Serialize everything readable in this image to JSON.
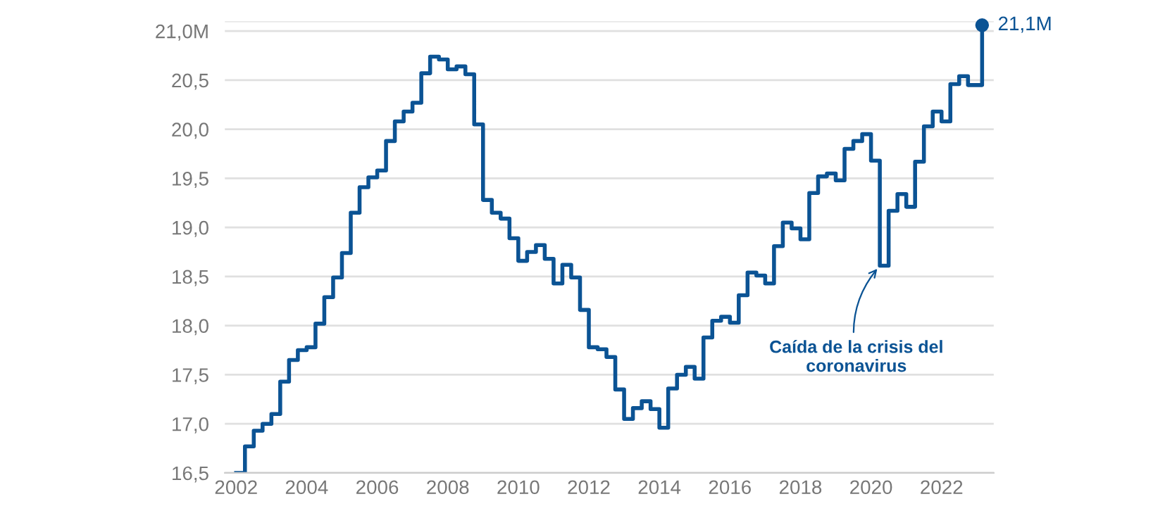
{
  "chart_data": {
    "type": "step",
    "x": [
      2002,
      2002.25,
      2002.5,
      2002.75,
      2003,
      2003.25,
      2003.5,
      2003.75,
      2004,
      2004.25,
      2004.5,
      2004.75,
      2005,
      2005.25,
      2005.5,
      2005.75,
      2006,
      2006.25,
      2006.5,
      2006.75,
      2007,
      2007.25,
      2007.5,
      2007.75,
      2008,
      2008.25,
      2008.5,
      2008.75,
      2009,
      2009.25,
      2009.5,
      2009.75,
      2010,
      2010.25,
      2010.5,
      2010.75,
      2011,
      2011.25,
      2011.5,
      2011.75,
      2012,
      2012.25,
      2012.5,
      2012.75,
      2013,
      2013.25,
      2013.5,
      2013.75,
      2014,
      2014.25,
      2014.5,
      2014.75,
      2015,
      2015.25,
      2015.5,
      2015.75,
      2016,
      2016.25,
      2016.5,
      2016.75,
      2017,
      2017.25,
      2017.5,
      2017.75,
      2018,
      2018.25,
      2018.5,
      2018.75,
      2019,
      2019.25,
      2019.5,
      2019.75,
      2020,
      2020.25,
      2020.5,
      2020.75,
      2021,
      2021.25,
      2021.5,
      2021.75,
      2022,
      2022.25,
      2022.5,
      2022.75,
      2023.15
    ],
    "series": [
      {
        "color": "#0b5394",
        "values": [
          16.5,
          16.77,
          16.93,
          17.0,
          17.1,
          17.43,
          17.65,
          17.75,
          17.78,
          18.02,
          18.29,
          18.49,
          18.74,
          19.15,
          19.41,
          19.51,
          19.58,
          19.88,
          20.08,
          20.18,
          20.27,
          20.57,
          20.74,
          20.71,
          20.61,
          20.64,
          20.56,
          20.05,
          19.28,
          19.15,
          19.09,
          18.89,
          18.66,
          18.75,
          18.82,
          18.68,
          18.43,
          18.62,
          18.49,
          18.16,
          17.78,
          17.76,
          17.68,
          17.35,
          17.05,
          17.16,
          17.23,
          17.15,
          16.96,
          17.36,
          17.5,
          17.58,
          17.46,
          17.88,
          18.05,
          18.09,
          18.03,
          18.31,
          18.54,
          18.51,
          18.43,
          18.81,
          19.05,
          18.99,
          18.88,
          19.35,
          19.52,
          19.55,
          19.48,
          19.8,
          19.88,
          19.95,
          19.68,
          18.61,
          19.17,
          19.34,
          19.21,
          19.67,
          20.03,
          20.18,
          20.08,
          20.46,
          20.54,
          20.45,
          21.06
        ],
        "value_labels": [
          null,
          null,
          null,
          null,
          null,
          null,
          null,
          null,
          null,
          null,
          null,
          null,
          null,
          null,
          null,
          null,
          null,
          null,
          null,
          null,
          null,
          null,
          null,
          null,
          null,
          null,
          null,
          null,
          null,
          null,
          null,
          null,
          null,
          null,
          null,
          null,
          null,
          null,
          null,
          null,
          null,
          null,
          null,
          null,
          null,
          null,
          null,
          null,
          null,
          null,
          null,
          null,
          null,
          null,
          null,
          null,
          null,
          null,
          null,
          null,
          null,
          null,
          null,
          null,
          null,
          null,
          null,
          null,
          null,
          null,
          null,
          null,
          null,
          null,
          null,
          null,
          null,
          null,
          null,
          null,
          null,
          null,
          null,
          null,
          "21,1M"
        ]
      }
    ],
    "xlim": [
      2001.68,
      2023.48
    ],
    "xticks": [
      2002,
      2004,
      2006,
      2008,
      2010,
      2012,
      2014,
      2016,
      2018,
      2020,
      2022
    ],
    "ylim": [
      16.5,
      21.1
    ],
    "yticks": [
      {
        "value": 16.5,
        "label": "16,5"
      },
      {
        "value": 17.0,
        "label": "17,0"
      },
      {
        "value": 17.5,
        "label": "17,5"
      },
      {
        "value": 18.0,
        "label": "18,0"
      },
      {
        "value": 18.5,
        "label": "18,5"
      },
      {
        "value": 19.0,
        "label": "19,0"
      },
      {
        "value": 19.5,
        "label": "19,5"
      },
      {
        "value": 20.0,
        "label": "20,0"
      },
      {
        "value": 20.5,
        "label": "20,5"
      },
      {
        "value": 21.0,
        "label": "21,0M"
      },
      {
        "value": 21.1,
        "label": null
      }
    ],
    "grid": "y",
    "annotations": [
      {
        "text": "Caída de la crisis del\ncoronavirus",
        "x": 2020.25,
        "y": 18.61
      }
    ]
  }
}
